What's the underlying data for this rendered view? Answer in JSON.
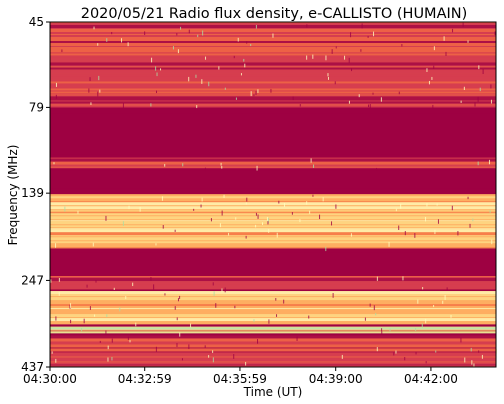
{
  "chart_data": {
    "type": "heatmap",
    "title": "2020/05/21  Radio flux density, e-CALLISTO (HUMAIN)",
    "xlabel": "Time (UT)",
    "ylabel": "Frequency (MHz)",
    "x_ticks": [
      "04:30:00",
      "04:32:59",
      "04:35:59",
      "04:39:00",
      "04:42:00"
    ],
    "y_ticks": [
      "45",
      "79",
      "139",
      "247",
      "437"
    ],
    "xlim": [
      "04:30:00",
      "04:44:03"
    ],
    "ylim": [
      45,
      437
    ],
    "colormap": "Spectral (reversed): dark red = low flux, yellow/light green = high flux",
    "colors": {
      "low": "#9e0142",
      "mid_low": "#d53e4f",
      "mid": "#f46d43",
      "mid_high": "#fdae61",
      "high": "#fee08b",
      "very_high": "#ffffbf",
      "peak": "#abdda4"
    },
    "frequency_bands": [
      {
        "freq_range_mhz": [
          45,
          55
        ],
        "level": "moderate"
      },
      {
        "freq_range_mhz": [
          55,
          79
        ],
        "level": "moderate, striated"
      },
      {
        "freq_range_mhz": [
          82,
          108
        ],
        "level": "low (no signal)"
      },
      {
        "freq_range_mhz": [
          110,
          118
        ],
        "level": "moderate"
      },
      {
        "freq_range_mhz": [
          120,
          135
        ],
        "level": "low (no signal)"
      },
      {
        "freq_range_mhz": [
          140,
          200
        ],
        "level": "high, strong continuum"
      },
      {
        "freq_range_mhz": [
          205,
          240
        ],
        "level": "low (no signal)"
      },
      {
        "freq_range_mhz": [
          240,
          262
        ],
        "level": "moderate"
      },
      {
        "freq_range_mhz": [
          265,
          330
        ],
        "level": "high, strong continuum"
      },
      {
        "freq_range_mhz": [
          335,
          350
        ],
        "level": "peak"
      },
      {
        "freq_range_mhz": [
          355,
          437
        ],
        "level": "low to moderate"
      }
    ]
  }
}
